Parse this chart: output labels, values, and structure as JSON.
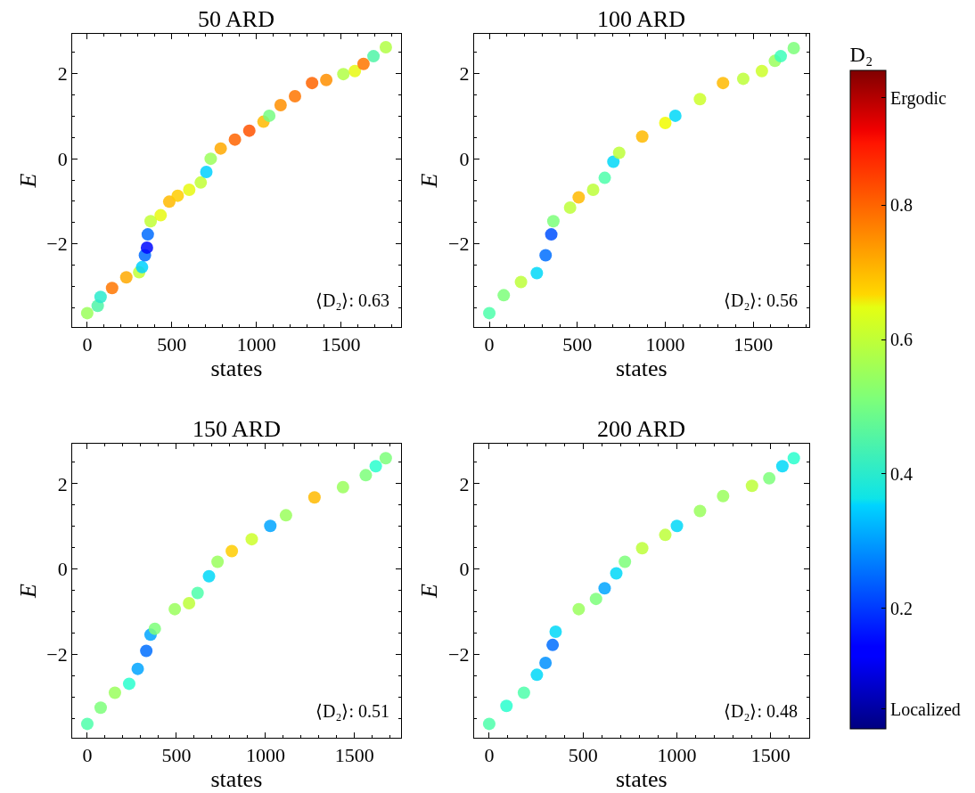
{
  "chart_data": [
    {
      "type": "scatter",
      "title": "50 ARD",
      "xlabel": "states",
      "ylabel": "E",
      "annotations": [
        "⟨D₂⟩: 0.63"
      ],
      "marker": "circle",
      "grid": false,
      "xlim": [
        -88,
        1853
      ],
      "ylim": [
        -3.95,
        2.93
      ],
      "xticks": [
        0,
        500,
        1000,
        1500
      ],
      "yticks": [
        -2,
        0,
        2
      ],
      "clim": [
        0.02,
        1.0
      ],
      "clabel": "D₂",
      "cticks": [
        {
          "value": 0.05,
          "label": "Localized"
        },
        0.2,
        0.4,
        0.6,
        0.8,
        {
          "value": 0.96,
          "label": "Ergodic"
        }
      ],
      "x": [
        0,
        62,
        79,
        147,
        231,
        307,
        324,
        341,
        353,
        358,
        375,
        434,
        485,
        535,
        603,
        671,
        704,
        730,
        789,
        873,
        958,
        1042,
        1076,
        1143,
        1228,
        1329,
        1413,
        1514,
        1582,
        1633,
        1692,
        1765
      ],
      "values": [
        -3.63,
        -3.46,
        -3.25,
        -3.04,
        -2.79,
        -2.67,
        -2.55,
        -2.27,
        -2.09,
        -1.78,
        -1.47,
        -1.33,
        -1.01,
        -0.87,
        -0.73,
        -0.56,
        -0.31,
        0.0,
        0.24,
        0.45,
        0.66,
        0.87,
        1.01,
        1.26,
        1.47,
        1.78,
        1.85,
        1.99,
        2.06,
        2.23,
        2.41,
        2.62
      ],
      "cvalues": [
        0.55,
        0.45,
        0.4,
        0.78,
        0.72,
        0.6,
        0.35,
        0.25,
        0.15,
        0.25,
        0.6,
        0.65,
        0.7,
        0.68,
        0.65,
        0.6,
        0.35,
        0.55,
        0.72,
        0.8,
        0.82,
        0.7,
        0.5,
        0.75,
        0.78,
        0.8,
        0.75,
        0.58,
        0.65,
        0.78,
        0.45,
        0.58
      ]
    },
    {
      "type": "scatter",
      "title": "100 ARD",
      "xlabel": "states",
      "ylabel": "E",
      "annotations": [
        "⟨D₂⟩: 0.56"
      ],
      "marker": "circle",
      "grid": false,
      "xlim": [
        -87,
        1817
      ],
      "ylim": [
        -3.95,
        2.93
      ],
      "xticks": [
        0,
        500,
        1000,
        1500
      ],
      "yticks": [
        -2,
        0,
        2
      ],
      "x": [
        0,
        82,
        180,
        270,
        320,
        352,
        364,
        459,
        508,
        590,
        656,
        705,
        738,
        869,
        1000,
        1057,
        1197,
        1328,
        1443,
        1549,
        1623,
        1656,
        1730
      ],
      "values": [
        -3.63,
        -3.21,
        -2.9,
        -2.69,
        -2.27,
        -1.78,
        -1.47,
        -1.15,
        -0.91,
        -0.73,
        -0.45,
        -0.07,
        0.14,
        0.52,
        0.84,
        1.01,
        1.4,
        1.78,
        1.88,
        2.06,
        2.3,
        2.41,
        2.6
      ],
      "colors": [
        "#4dffaa",
        "#7dff7a",
        "#bdff39",
        "#00d8f8",
        "#006eff",
        "#0050ff",
        "#7dff7a",
        "#bdff39",
        "#ffba00",
        "#bdff39",
        "#4dffaa",
        "#00d8f8",
        "#bdff39",
        "#ffba00",
        "#f1fc00",
        "#00d8f8",
        "#ccff2a",
        "#ffba00",
        "#bdff39",
        "#ccff2a",
        "#9aff5d",
        "#3cffba",
        "#7dff7a"
      ]
    },
    {
      "type": "scatter",
      "title": "150 ARD",
      "xlabel": "states",
      "ylabel": "E",
      "annotations": [
        "⟨D₂⟩: 0.51"
      ],
      "marker": "circle",
      "grid": false,
      "xlim": [
        -84,
        1759
      ],
      "ylim": [
        -3.95,
        2.93
      ],
      "xticks": [
        0,
        500,
        1000,
        1500
      ],
      "yticks": [
        -2,
        0,
        2
      ],
      "x": [
        0,
        75,
        155,
        235,
        283,
        331,
        355,
        379,
        491,
        571,
        619,
        683,
        731,
        811,
        923,
        1027,
        1115,
        1275,
        1435,
        1563,
        1619,
        1675
      ],
      "values": [
        -3.63,
        -3.25,
        -2.9,
        -2.69,
        -2.34,
        -1.92,
        -1.54,
        -1.4,
        -0.94,
        -0.8,
        -0.56,
        -0.17,
        0.17,
        0.42,
        0.7,
        1.01,
        1.26,
        1.68,
        1.92,
        2.2,
        2.41,
        2.6
      ],
      "colors": [
        "#4dffaa",
        "#7dff7a",
        "#9aff5d",
        "#29ffce",
        "#00a4ff",
        "#006eff",
        "#00a4ff",
        "#7dff7a",
        "#9aff5d",
        "#bdff39",
        "#4dffaa",
        "#00d8f8",
        "#9aff5d",
        "#ffcc00",
        "#ccff2a",
        "#00a4ff",
        "#9aff5d",
        "#ffba00",
        "#9aff5d",
        "#7dff7a",
        "#29ffce",
        "#7dff7a"
      ]
    },
    {
      "type": "scatter",
      "title": "200 ARD",
      "xlabel": "states",
      "ylabel": "E",
      "annotations": [
        "⟨D₂⟩: 0.48"
      ],
      "marker": "circle",
      "grid": false,
      "xlim": [
        -81,
        1704
      ],
      "ylim": [
        -3.95,
        2.93
      ],
      "xticks": [
        0,
        500,
        1000,
        1500
      ],
      "yticks": [
        -2,
        0,
        2
      ],
      "x": [
        0,
        92,
        185,
        254,
        300,
        338,
        354,
        477,
        569,
        615,
        677,
        723,
        815,
        938,
        1000,
        1123,
        1246,
        1400,
        1492,
        1562,
        1623
      ],
      "values": [
        -3.63,
        -3.21,
        -2.9,
        -2.48,
        -2.2,
        -1.78,
        -1.47,
        -0.94,
        -0.7,
        -0.45,
        -0.1,
        0.17,
        0.49,
        0.8,
        1.01,
        1.36,
        1.71,
        1.95,
        2.13,
        2.41,
        2.6
      ],
      "colors": [
        "#4dffaa",
        "#29ffce",
        "#4dffaa",
        "#00d8f8",
        "#0090ff",
        "#006eff",
        "#00d8f8",
        "#9aff5d",
        "#7dff7a",
        "#00a4ff",
        "#00d8f8",
        "#7dff7a",
        "#bdff39",
        "#bdff39",
        "#00d8f8",
        "#9aff5d",
        "#9aff5d",
        "#bdff39",
        "#7dff7a",
        "#00d8f8",
        "#29ffce"
      ]
    }
  ]
}
